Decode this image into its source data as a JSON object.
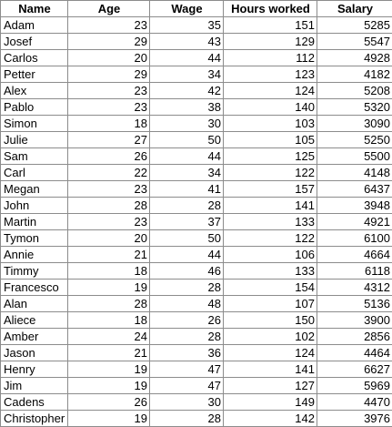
{
  "headers": [
    "Name",
    "Age",
    "Wage",
    "Hours worked",
    "Salary"
  ],
  "rows": [
    [
      "Adam",
      23,
      35,
      151,
      5285
    ],
    [
      "Josef",
      29,
      43,
      129,
      5547
    ],
    [
      "Carlos",
      20,
      44,
      112,
      4928
    ],
    [
      "Petter",
      29,
      34,
      123,
      4182
    ],
    [
      "Alex",
      23,
      42,
      124,
      5208
    ],
    [
      "Pablo",
      23,
      38,
      140,
      5320
    ],
    [
      "Simon",
      18,
      30,
      103,
      3090
    ],
    [
      "Julie",
      27,
      50,
      105,
      5250
    ],
    [
      "Sam",
      26,
      44,
      125,
      5500
    ],
    [
      "Carl",
      22,
      34,
      122,
      4148
    ],
    [
      "Megan",
      23,
      41,
      157,
      6437
    ],
    [
      "John",
      28,
      28,
      141,
      3948
    ],
    [
      "Martin",
      23,
      37,
      133,
      4921
    ],
    [
      "Tymon",
      20,
      50,
      122,
      6100
    ],
    [
      "Annie",
      21,
      44,
      106,
      4664
    ],
    [
      "Timmy",
      18,
      46,
      133,
      6118
    ],
    [
      "Francesco",
      19,
      28,
      154,
      4312
    ],
    [
      "Alan",
      28,
      48,
      107,
      5136
    ],
    [
      "Aliece",
      18,
      26,
      150,
      3900
    ],
    [
      "Amber",
      24,
      28,
      102,
      2856
    ],
    [
      "Jason",
      21,
      36,
      124,
      4464
    ],
    [
      "Henry",
      19,
      47,
      141,
      6627
    ],
    [
      "Jim",
      19,
      47,
      127,
      5969
    ],
    [
      "Cadens",
      26,
      30,
      149,
      4470
    ],
    [
      "Christopher",
      19,
      28,
      142,
      3976
    ]
  ]
}
